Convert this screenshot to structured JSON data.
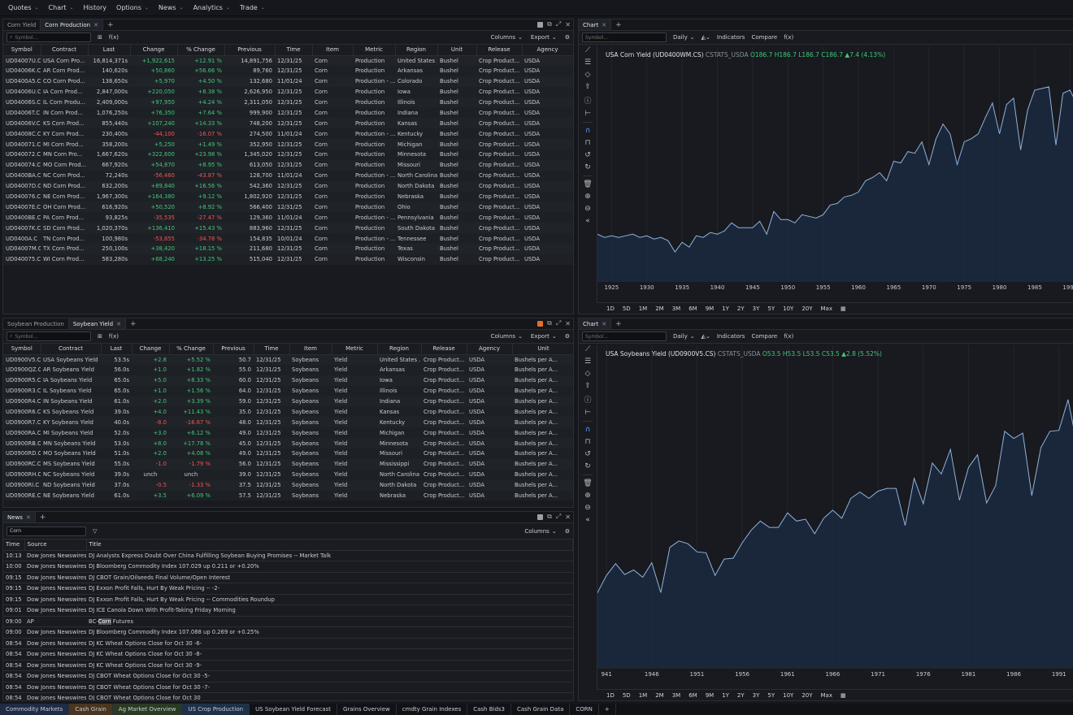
{
  "menu": [
    "Quotes",
    "Chart",
    "History",
    "Options",
    "News",
    "Analytics",
    "Trade"
  ],
  "corn_panel": {
    "tabs": [
      "Corn Yield",
      "Corn Production"
    ],
    "active_tab": 1,
    "symbol_placeholder": "Symbol...",
    "fx": "f(x)",
    "columns_label": "Columns",
    "export_label": "Export",
    "headers": [
      "Symbol",
      "Contract",
      "Last",
      "Change",
      "% Change",
      "Previous",
      "Time",
      "Item",
      "Metric",
      "Region",
      "Unit",
      "Release",
      "Agency"
    ],
    "rows": [
      [
        "UD04007U.C",
        "USA Corn Pro...",
        "16,814,371s",
        "+1,922,615",
        "+12.91 %",
        "14,891,756",
        "12/31/25",
        "Corn",
        "Production",
        "United States ...",
        "Bushel",
        "Crop Product...",
        "USDA"
      ],
      [
        "UD04006K.C",
        "AR Corn Prod...",
        "140,620s",
        "+50,860",
        "+56.66 %",
        "89,760",
        "12/31/25",
        "Corn",
        "Production",
        "Arkansas",
        "Bushel",
        "Crop Product...",
        "USDA"
      ],
      [
        "UD0400A5.C",
        "CO Corn Prod...",
        "138,650s",
        "+5,970",
        "+4.50 %",
        "132,680",
        "11/01/24",
        "Corn",
        "Production - ...",
        "Colorado",
        "Bushel",
        "Crop Product...",
        "USDA"
      ],
      [
        "UD04006U.C",
        "IA Corn Prod...",
        "2,847,000s",
        "+220,050",
        "+8.38 %",
        "2,626,950",
        "12/31/25",
        "Corn",
        "Production",
        "Iowa",
        "Bushel",
        "Crop Product...",
        "USDA"
      ],
      [
        "UD04006S.C",
        "IL Corn Produ...",
        "2,409,000s",
        "+97,950",
        "+4.24 %",
        "2,311,050",
        "12/31/25",
        "Corn",
        "Production",
        "Illinois",
        "Bushel",
        "Crop Product...",
        "USDA"
      ],
      [
        "UD04006T.C",
        "IN Corn Prod...",
        "1,076,250s",
        "+76,350",
        "+7.64 %",
        "999,900",
        "12/31/25",
        "Corn",
        "Production",
        "Indiana",
        "Bushel",
        "Crop Product...",
        "USDA"
      ],
      [
        "UD04006V.C",
        "KS Corn Prod...",
        "855,440s",
        "+107,240",
        "+14.33 %",
        "748,200",
        "12/31/25",
        "Corn",
        "Production",
        "Kansas",
        "Bushel",
        "Crop Product...",
        "USDA"
      ],
      [
        "UD04008C.C",
        "KY Corn Prod...",
        "230,400s",
        "-44,100",
        "-16.07 %",
        "274,500",
        "11/01/24",
        "Corn",
        "Production - ...",
        "Kentucky",
        "Bushel",
        "Crop Product...",
        "USDA"
      ],
      [
        "UD040071.C",
        "MI Corn Prod...",
        "358,200s",
        "+5,250",
        "+1.49 %",
        "352,950",
        "12/31/25",
        "Corn",
        "Production",
        "Michigan",
        "Bushel",
        "Crop Product...",
        "USDA"
      ],
      [
        "UD040072.C",
        "MN Corn Pro...",
        "1,667,620s",
        "+322,600",
        "+23.98 %",
        "1,345,020",
        "12/31/25",
        "Corn",
        "Production",
        "Minnesota",
        "Bushel",
        "Crop Product...",
        "USDA"
      ],
      [
        "UD040074.C",
        "MO Corn Prod...",
        "667,920s",
        "+54,870",
        "+8.95 %",
        "613,050",
        "12/31/25",
        "Corn",
        "Production",
        "Missouri",
        "Bushel",
        "Crop Product...",
        "USDA"
      ],
      [
        "UD0400BA.C",
        "NC Corn Prod...",
        "72,240s",
        "-56,460",
        "-43.87 %",
        "128,700",
        "11/01/24",
        "Corn",
        "Production - ...",
        "North Carolina",
        "Bushel",
        "Crop Product...",
        "USDA"
      ],
      [
        "UD04007D.C",
        "ND Corn Prod...",
        "632,200s",
        "+89,840",
        "+16.56 %",
        "542,360",
        "12/31/25",
        "Corn",
        "Production",
        "North Dakota",
        "Bushel",
        "Crop Product...",
        "USDA"
      ],
      [
        "UD040076.C",
        "NE Corn Prod...",
        "1,967,300s",
        "+164,380",
        "+9.12 %",
        "1,802,920",
        "12/31/25",
        "Corn",
        "Production",
        "Nebraska",
        "Bushel",
        "Crop Product...",
        "USDA"
      ],
      [
        "UD04007E.C",
        "OH Corn Prod...",
        "616,920s",
        "+50,520",
        "+8.92 %",
        "566,400",
        "12/31/25",
        "Corn",
        "Production",
        "Ohio",
        "Bushel",
        "Crop Product...",
        "USDA"
      ],
      [
        "UD0400BE.C",
        "PA Corn Prod...",
        "93,825s",
        "-35,535",
        "-27.47 %",
        "129,360",
        "11/01/24",
        "Corn",
        "Production - ...",
        "Pennsylvania",
        "Bushel",
        "Crop Product...",
        "USDA"
      ],
      [
        "UD04007K.C",
        "SD Corn Prod...",
        "1,020,370s",
        "+136,410",
        "+15.43 %",
        "883,960",
        "12/31/25",
        "Corn",
        "Production",
        "South Dakota",
        "Bushel",
        "Crop Product...",
        "USDA"
      ],
      [
        "UD0400A.C",
        "TN Corn Prod...",
        "100,980s",
        "-53,855",
        "-34.78 %",
        "154,835",
        "10/01/24",
        "Corn",
        "Production - ...",
        "Tennessee",
        "Bushel",
        "Crop Product...",
        "USDA"
      ],
      [
        "UD04007M.C",
        "TX Corn Prod...",
        "250,100s",
        "+38,420",
        "+18.15 %",
        "211,680",
        "12/31/25",
        "Corn",
        "Production",
        "Texas",
        "Bushel",
        "Crop Product...",
        "USDA"
      ],
      [
        "UD040075.C",
        "WI Corn Prod...",
        "583,280s",
        "+68,240",
        "+13.25 %",
        "515,040",
        "12/31/25",
        "Corn",
        "Production",
        "Wisconsin",
        "Bushel",
        "Crop Product...",
        "USDA"
      ]
    ]
  },
  "soy_panel": {
    "tabs": [
      "Soybean Production",
      "Soybean Yield"
    ],
    "active_tab": 1,
    "symbol_placeholder": "Symbol...",
    "fx": "f(x)",
    "columns_label": "Columns",
    "export_label": "Export",
    "headers": [
      "Symbol",
      "Contract",
      "Last",
      "Change",
      "% Change",
      "Previous",
      "Time",
      "Item",
      "Metric",
      "Region",
      "Release",
      "Agency",
      "Unit"
    ],
    "rows": [
      [
        "UD0900V5.C",
        "USA Soybeans Yield",
        "53.5s",
        "+2.8",
        "+5.52 %",
        "50.7",
        "12/31/25",
        "Soybeans",
        "Yield",
        "United States ...",
        "Crop Product...",
        "USDA",
        "Bushels per A..."
      ],
      [
        "UD0900QZ.C",
        "AR Soybeans Yield",
        "56.0s",
        "+1.0",
        "+1.82 %",
        "55.0",
        "12/31/25",
        "Soybeans",
        "Yield",
        "Arkansas",
        "Crop Product...",
        "USDA",
        "Bushels per A..."
      ],
      [
        "UD0900R5.C",
        "IA Soybeans Yield",
        "65.0s",
        "+5.0",
        "+8.33 %",
        "60.0",
        "12/31/25",
        "Soybeans",
        "Yield",
        "Iowa",
        "Crop Product...",
        "USDA",
        "Bushels per A..."
      ],
      [
        "UD0900R3.C",
        "IL Soybeans Yield",
        "65.0s",
        "+1.0",
        "+1.56 %",
        "64.0",
        "12/31/25",
        "Soybeans",
        "Yield",
        "Illinois",
        "Crop Product...",
        "USDA",
        "Bushels per A..."
      ],
      [
        "UD0900R4.C",
        "IN Soybeans Yield",
        "61.0s",
        "+2.0",
        "+3.39 %",
        "59.0",
        "12/31/25",
        "Soybeans",
        "Yield",
        "Indiana",
        "Crop Product...",
        "USDA",
        "Bushels per A..."
      ],
      [
        "UD0900R6.C",
        "KS Soybeans Yield",
        "39.0s",
        "+4.0",
        "+11.43 %",
        "35.0",
        "12/31/25",
        "Soybeans",
        "Yield",
        "Kansas",
        "Crop Product...",
        "USDA",
        "Bushels per A..."
      ],
      [
        "UD0900R7.C",
        "KY Soybeans Yield",
        "40.0s",
        "-8.0",
        "-16.67 %",
        "48.0",
        "12/31/25",
        "Soybeans",
        "Yield",
        "Kentucky",
        "Crop Product...",
        "USDA",
        "Bushels per A..."
      ],
      [
        "UD0900RA.C",
        "MI Soybeans Yield",
        "52.0s",
        "+3.0",
        "+6.12 %",
        "49.0",
        "12/31/25",
        "Soybeans",
        "Yield",
        "Michigan",
        "Crop Product...",
        "USDA",
        "Bushels per A..."
      ],
      [
        "UD0900RB.C",
        "MN Soybeans Yield",
        "53.0s",
        "+8.0",
        "+17.78 %",
        "45.0",
        "12/31/25",
        "Soybeans",
        "Yield",
        "Minnesota",
        "Crop Product...",
        "USDA",
        "Bushels per A..."
      ],
      [
        "UD0900RD.C",
        "MO Soybeans Yield",
        "51.0s",
        "+2.0",
        "+4.08 %",
        "49.0",
        "12/31/25",
        "Soybeans",
        "Yield",
        "Missouri",
        "Crop Product...",
        "USDA",
        "Bushels per A..."
      ],
      [
        "UD0900RC.C",
        "MS Soybeans Yield",
        "55.0s",
        "-1.0",
        "-1.79 %",
        "56.0",
        "12/31/25",
        "Soybeans",
        "Yield",
        "Mississippi",
        "Crop Product...",
        "USDA",
        "Bushels per A..."
      ],
      [
        "UD0900RH.C",
        "NC Soybeans Yield",
        "39.0s",
        "unch",
        "unch",
        "39.0",
        "12/31/25",
        "Soybeans",
        "Yield",
        "North Carolina",
        "Crop Product...",
        "USDA",
        "Bushels per A..."
      ],
      [
        "UD0900RI.C",
        "ND Soybeans Yield",
        "37.0s",
        "-0.5",
        "-1.33 %",
        "37.5",
        "12/31/25",
        "Soybeans",
        "Yield",
        "North Dakota",
        "Crop Product...",
        "USDA",
        "Bushels per A..."
      ],
      [
        "UD0900RE.C",
        "NE Soybeans Yield",
        "61.0s",
        "+3.5",
        "+6.09 %",
        "57.5",
        "12/31/25",
        "Soybeans",
        "Yield",
        "Nebraska",
        "Crop Product...",
        "USDA",
        "Bushels per A..."
      ]
    ]
  },
  "news_panel": {
    "tab": "News",
    "filter_value": "Corn",
    "columns_label": "Columns",
    "headers": [
      "Time",
      "Source",
      "Title"
    ],
    "rows": [
      [
        "10:13",
        "Dow Jones Newswires",
        "DJ Analysts Express Doubt Over China Fulfilling Soybean Buying Promises -- Market Talk"
      ],
      [
        "10:00",
        "Dow Jones Newswires",
        "DJ Bloomberg Commodity Index 107.029 up 0.211 or +0.20%"
      ],
      [
        "09:15",
        "Dow Jones Newswires",
        "DJ CBOT Grain/Oilseeds Final Volume/Open Interest"
      ],
      [
        "09:15",
        "Dow Jones Newswires",
        "DJ Exxon Profit Falls, Hurt By Weak Pricing -- -2-"
      ],
      [
        "09:15",
        "Dow Jones Newswires",
        "DJ Exxon Profit Falls, Hurt By Weak Pricing -- Commodities Roundup"
      ],
      [
        "09:01",
        "Dow Jones Newswires",
        "DJ ICE Canola Down With Profit-Taking Friday Morning"
      ],
      [
        "09:00",
        "AP",
        "BC-Corn Futures"
      ],
      [
        "09:00",
        "Dow Jones Newswires",
        "DJ Bloomberg Commodity Index 107.088 up 0.269 or +0.25%"
      ],
      [
        "08:54",
        "Dow Jones Newswires",
        "DJ KC Wheat Options Close for Oct 30 -6-"
      ],
      [
        "08:54",
        "Dow Jones Newswires",
        "DJ KC Wheat Options Close for Oct 30 -8-"
      ],
      [
        "08:54",
        "Dow Jones Newswires",
        "DJ KC Wheat Options Close for Oct 30 -9-"
      ],
      [
        "08:54",
        "Dow Jones Newswires",
        "DJ CBOT Wheat Options Close for Oct 30 -5-"
      ],
      [
        "08:54",
        "Dow Jones Newswires",
        "DJ CBOT Wheat Options Close for Oct 30 -7-"
      ],
      [
        "08:54",
        "Dow Jones Newswires",
        "DJ CBOT Wheat Options Close for Oct 30"
      ]
    ],
    "hl_prefix": "BC-",
    "hl_word": "Corn",
    "hl_suffix": " Futures"
  },
  "chart_toolbar": {
    "tab": "Chart",
    "symbol_placeholder": "Symbol...",
    "interval": "Daily",
    "indicators": "Indicators",
    "compare": "Compare",
    "fx": "f(x)"
  },
  "periods": [
    "1D",
    "5D",
    "1M",
    "2M",
    "3M",
    "6M",
    "9M",
    "1Y",
    "2Y",
    "3Y",
    "5Y",
    "10Y",
    "20Y",
    "Max"
  ],
  "chart_legends": [
    {
      "title": "USA Corn Yield (UD0400WM.CS)",
      "source": "CSTATS_USDA",
      "ohlc": "O186.7 H186.7 L186.7 C186.7 ▲7.4 (4.13%)"
    },
    {
      "title": "USA Soybeans Yield (UD0900V5.CS)",
      "source": "CSTATS_USDA",
      "ohlc": "O53.5 H53.5 L53.5 C53.5 ▲2.8 (5.52%)"
    }
  ],
  "chart_data": [
    {
      "type": "area",
      "x_ticks": [
        "1925",
        "1930",
        "1935",
        "1940",
        "1945",
        "1950",
        "1955",
        "1960",
        "1965",
        "1970",
        "1975",
        "1980",
        "1985",
        "1990"
      ],
      "x": [
        1923,
        1924,
        1925,
        1926,
        1927,
        1928,
        1929,
        1930,
        1931,
        1932,
        1933,
        1934,
        1935,
        1936,
        1937,
        1938,
        1939,
        1940,
        1941,
        1942,
        1943,
        1944,
        1945,
        1946,
        1947,
        1948,
        1949,
        1950,
        1951,
        1952,
        1953,
        1954,
        1955,
        1956,
        1957,
        1958,
        1959,
        1960,
        1961,
        1962,
        1963,
        1964,
        1965,
        1966,
        1967,
        1968,
        1969,
        1970,
        1971,
        1972,
        1973,
        1974,
        1975,
        1976,
        1977,
        1978,
        1979,
        1980,
        1981,
        1982,
        1983,
        1984,
        1985,
        1986,
        1987,
        1988,
        1989,
        1990,
        1991
      ],
      "values": [
        29,
        27,
        28,
        27,
        28,
        29,
        27,
        28,
        26,
        27,
        25,
        18,
        24,
        21,
        28,
        27,
        30,
        29,
        31,
        36,
        33,
        33,
        33,
        37,
        29,
        43,
        38,
        38,
        36,
        41,
        40,
        39,
        41,
        47,
        48,
        52,
        53,
        55,
        62,
        64,
        67,
        62,
        74,
        73,
        80,
        79,
        86,
        72,
        88,
        97,
        91,
        72,
        86,
        88,
        91,
        101,
        110,
        91,
        109,
        113,
        81,
        106,
        118,
        119,
        120,
        84,
        116,
        118,
        109
      ]
    },
    {
      "type": "area",
      "x_ticks": [
        "941",
        "1946",
        "1951",
        "1956",
        "1961",
        "1966",
        "1971",
        "1976",
        "1981",
        "1986",
        "1991"
      ],
      "x": [
        1939,
        1940,
        1941,
        1942,
        1943,
        1944,
        1945,
        1946,
        1947,
        1948,
        1949,
        1950,
        1951,
        1952,
        1953,
        1954,
        1955,
        1956,
        1957,
        1958,
        1959,
        1960,
        1961,
        1962,
        1963,
        1964,
        1965,
        1966,
        1967,
        1968,
        1969,
        1970,
        1971,
        1972,
        1973,
        1974,
        1975,
        1976,
        1977,
        1978,
        1979,
        1980,
        1981,
        1982,
        1983,
        1984,
        1985,
        1986,
        1987,
        1988,
        1989,
        1990,
        1991,
        1992,
        1993
      ],
      "values": [
        18.2,
        16.3,
        18.2,
        19.5,
        18.3,
        18.8,
        18.0,
        19.6,
        16.3,
        21.3,
        22.0,
        21.7,
        20.8,
        20.7,
        18.2,
        20.0,
        20.1,
        21.8,
        23.2,
        24.2,
        23.5,
        23.5,
        25.1,
        24.2,
        24.4,
        22.8,
        24.5,
        25.4,
        24.5,
        26.7,
        27.4,
        26.7,
        27.5,
        27.8,
        27.8,
        23.7,
        28.9,
        26.1,
        30.6,
        29.4,
        32.1,
        26.5,
        30.1,
        31.5,
        26.2,
        28.1,
        34.1,
        33.3,
        33.9,
        27.0,
        32.3,
        34.1,
        34.2,
        37.6,
        32.6
      ],
      "ylim": [
        10,
        40
      ]
    }
  ],
  "bottom_tabs": [
    "Commodity Markets",
    "Cash Grain",
    "Ag Market Overview",
    "US Crop Production",
    "US Soybean Yield Forecast",
    "Grains Overview",
    "cmdty Grain Indexes",
    "Cash Bids3",
    "Cash Grain Data",
    "CORN"
  ],
  "bottom_tab_colors": [
    "#1f2c44",
    "#4a3520",
    "#2b3b23",
    "#1e3148"
  ],
  "colors": {
    "positive": "#42c77a",
    "negative": "#f0564f",
    "chart_line": "#8fb3dc",
    "chart_fill": "#1b2a40"
  }
}
